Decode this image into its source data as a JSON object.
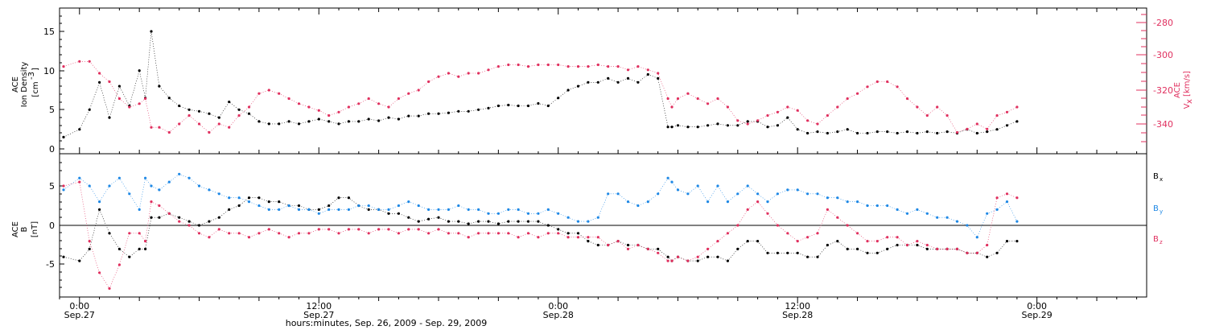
{
  "colors": {
    "black": "#000000",
    "pink": "#e0305f",
    "blue": "#1e88e5"
  },
  "xaxis": {
    "label": "hours:minutes, Sep. 26, 2009 - Sep. 29, 2009",
    "ticks": [
      {
        "t": 0,
        "time": "0:00",
        "date": "Sep.27"
      },
      {
        "t": 12,
        "time": "12:00",
        "date": "Sep.27"
      },
      {
        "t": 24,
        "time": "0:00",
        "date": "Sep.28"
      },
      {
        "t": 36,
        "time": "12:00",
        "date": "Sep.28"
      },
      {
        "t": 48,
        "time": "0:00",
        "date": "Sep.29"
      }
    ],
    "range_hours": [
      -1.0,
      53.5
    ]
  },
  "panel1": {
    "left_label": [
      "ACE",
      "Ion Density",
      "[cm",
      "-3",
      "]"
    ],
    "right_label": [
      "ACE",
      "V",
      "x",
      "[km/s]"
    ],
    "left_ticks": [
      "0",
      "5",
      "10",
      "15"
    ],
    "right_ticks": [
      "-280",
      "-300",
      "-320",
      "-340"
    ]
  },
  "panel2": {
    "left_label": [
      "ACE",
      "B",
      "[nT]"
    ],
    "left_ticks": [
      "-5",
      "0",
      "5"
    ],
    "legend": [
      {
        "base": "B",
        "sub": "x",
        "color": "#000000"
      },
      {
        "base": "B",
        "sub": "y",
        "color": "#1e88e5"
      },
      {
        "base": "B",
        "sub": "z",
        "color": "#e0305f"
      }
    ]
  },
  "chart_data": [
    {
      "type": "scatter",
      "x_unit": "hours since Sep.27 0:00",
      "ylim_left": [
        -0.5,
        17.5
      ],
      "ylim_right": [
        -356,
        -268
      ],
      "series": [
        {
          "name": "Ion Density",
          "axis": "left",
          "color": "#000000",
          "x": [
            -0.8,
            0,
            0.5,
            1,
            1.5,
            2,
            2.5,
            3,
            3.3,
            3.6,
            4,
            4.5,
            5,
            5.5,
            6,
            6.5,
            7,
            7.5,
            8,
            8.5,
            9,
            9.5,
            10,
            10.5,
            11,
            11.5,
            12,
            12.5,
            13,
            13.5,
            14,
            14.5,
            15,
            15.5,
            16,
            16.5,
            17,
            17.5,
            18,
            18.5,
            19,
            19.5,
            20,
            20.5,
            21,
            21.5,
            22,
            22.5,
            23,
            23.5,
            24,
            24.5,
            25,
            25.5,
            26,
            26.5,
            27,
            27.5,
            28,
            28.5,
            29,
            29.5,
            29.7,
            30,
            30.5,
            31,
            31.5,
            32,
            32.5,
            33,
            33.5,
            34,
            34.5,
            35,
            35.5,
            36,
            36.5,
            37,
            37.5,
            38,
            38.5,
            39,
            39.5,
            40,
            40.5,
            41,
            41.5,
            42,
            42.5,
            43,
            43.5,
            44,
            44.5,
            45,
            45.5,
            46,
            46.5,
            47
          ],
          "y": [
            1.5,
            2.5,
            5,
            8.5,
            4,
            8,
            5.5,
            10,
            6.5,
            15,
            8,
            6.5,
            5.5,
            5,
            4.8,
            4.5,
            4,
            6,
            5,
            4.5,
            3.5,
            3.2,
            3.2,
            3.5,
            3.2,
            3.5,
            3.8,
            3.5,
            3.2,
            3.5,
            3.5,
            3.8,
            3.6,
            4,
            3.8,
            4.2,
            4.2,
            4.5,
            4.5,
            4.6,
            4.8,
            4.8,
            5,
            5.2,
            5.5,
            5.6,
            5.5,
            5.5,
            5.8,
            5.5,
            6.5,
            7.5,
            8,
            8.5,
            8.5,
            9,
            8.5,
            9,
            8.5,
            9.5,
            9,
            2.8,
            2.8,
            3,
            2.8,
            2.8,
            3,
            3.2,
            3,
            3,
            3.5,
            3.5,
            2.8,
            3,
            4,
            2.5,
            2,
            2.2,
            2,
            2.2,
            2.5,
            2,
            2,
            2.2,
            2.2,
            2,
            2.2,
            2,
            2.2,
            2,
            2.2,
            2,
            2.5,
            2,
            2.2,
            2.5,
            3,
            3.5
          ]
        },
        {
          "name": "Vx",
          "axis": "right",
          "color": "#e0305f",
          "x": [
            -0.8,
            0,
            0.5,
            1,
            1.5,
            2,
            2.5,
            3,
            3.3,
            3.6,
            4,
            4.5,
            5,
            5.5,
            6,
            6.5,
            7,
            7.5,
            8,
            8.5,
            9,
            9.5,
            10,
            10.5,
            11,
            11.5,
            12,
            12.5,
            13,
            13.5,
            14,
            14.5,
            15,
            15.5,
            16,
            16.5,
            17,
            17.5,
            18,
            18.5,
            19,
            19.5,
            20,
            20.5,
            21,
            21.5,
            22,
            22.5,
            23,
            23.5,
            24,
            24.5,
            25,
            25.5,
            26,
            26.5,
            27,
            27.5,
            28,
            28.5,
            29,
            29.5,
            29.7,
            30,
            30.5,
            31,
            31.5,
            32,
            32.5,
            33,
            33.5,
            34,
            34.5,
            35,
            35.5,
            36,
            36.5,
            37,
            37.5,
            38,
            38.5,
            39,
            39.5,
            40,
            40.5,
            41,
            41.5,
            42,
            42.5,
            43,
            43.5,
            44,
            44.5,
            45,
            45.5,
            46,
            46.5,
            47
          ],
          "y": [
            -306,
            -303,
            -303,
            -310,
            -315,
            -325,
            -330,
            -328,
            -325,
            -342,
            -342,
            -345,
            -340,
            -335,
            -340,
            -345,
            -340,
            -342,
            -335,
            -330,
            -322,
            -320,
            -322,
            -325,
            -328,
            -330,
            -332,
            -335,
            -333,
            -330,
            -328,
            -325,
            -328,
            -330,
            -325,
            -322,
            -320,
            -315,
            -312,
            -310,
            -312,
            -310,
            -310,
            -308,
            -306,
            -305,
            -305,
            -306,
            -305,
            -305,
            -305,
            -306,
            -306,
            -306,
            -305,
            -306,
            -306,
            -308,
            -306,
            -308,
            -310,
            -325,
            -330,
            -325,
            -322,
            -325,
            -328,
            -325,
            -330,
            -338,
            -340,
            -338,
            -335,
            -333,
            -330,
            -332,
            -338,
            -340,
            -335,
            -330,
            -325,
            -322,
            -318,
            -315,
            -315,
            -318,
            -325,
            -330,
            -335,
            -330,
            -335,
            -345,
            -343,
            -340,
            -343,
            -335,
            -333,
            -330
          ]
        }
      ]
    },
    {
      "type": "scatter",
      "x_unit": "hours since Sep.27 0:00",
      "ylim": [
        -9,
        9
      ],
      "series": [
        {
          "name": "Bx",
          "color": "#000000",
          "x": [
            -0.8,
            0,
            0.5,
            1,
            1.5,
            2,
            2.5,
            3,
            3.3,
            3.6,
            4,
            4.5,
            5,
            5.5,
            6,
            6.5,
            7,
            7.5,
            8,
            8.5,
            9,
            9.5,
            10,
            10.5,
            11,
            11.5,
            12,
            12.5,
            13,
            13.5,
            14,
            14.5,
            15,
            15.5,
            16,
            16.5,
            17,
            17.5,
            18,
            18.5,
            19,
            19.5,
            20,
            20.5,
            21,
            21.5,
            22,
            22.5,
            23,
            23.5,
            24,
            24.5,
            25,
            25.5,
            26,
            26.5,
            27,
            27.5,
            28,
            28.5,
            29,
            29.5,
            29.7,
            30,
            30.5,
            31,
            31.5,
            32,
            32.5,
            33,
            33.5,
            34,
            34.5,
            35,
            35.5,
            36,
            36.5,
            37,
            37.5,
            38,
            38.5,
            39,
            39.5,
            40,
            40.5,
            41,
            41.5,
            42,
            42.5,
            43,
            43.5,
            44,
            44.5,
            45,
            45.5,
            46,
            46.5,
            47
          ],
          "y": [
            -4,
            -4.5,
            -3,
            2,
            -1,
            -3,
            -4,
            -3,
            -3,
            1,
            1,
            1.5,
            1,
            0.5,
            0,
            0.5,
            1,
            2,
            2.5,
            3.5,
            3.5,
            3,
            3,
            2.5,
            2.5,
            2,
            2,
            2.5,
            3.5,
            3.5,
            2.5,
            2,
            2,
            1.5,
            1.5,
            1,
            0.5,
            0.8,
            1,
            0.5,
            0.5,
            0.2,
            0.5,
            0.5,
            0.2,
            0.5,
            0.5,
            0.5,
            0.5,
            0,
            -0.5,
            -1,
            -1,
            -2,
            -2.5,
            -2.5,
            -2,
            -2.5,
            -2.5,
            -3,
            -3,
            -4,
            -4.5,
            -4,
            -4.5,
            -4.5,
            -4,
            -4,
            -4.5,
            -3,
            -2,
            -2,
            -3.5,
            -3.5,
            -3.5,
            -3.5,
            -4,
            -4,
            -2.5,
            -2,
            -3,
            -3,
            -3.5,
            -3.5,
            -3,
            -2.5,
            -2.5,
            -2.5,
            -3,
            -3,
            -3,
            -3,
            -3.5,
            -3.5,
            -4,
            -3.5,
            -2,
            -2
          ]
        },
        {
          "name": "By",
          "color": "#1e88e5",
          "x": [
            -0.8,
            0,
            0.5,
            1,
            1.5,
            2,
            2.5,
            3,
            3.3,
            3.6,
            4,
            4.5,
            5,
            5.5,
            6,
            6.5,
            7,
            7.5,
            8,
            8.5,
            9,
            9.5,
            10,
            10.5,
            11,
            11.5,
            12,
            12.5,
            13,
            13.5,
            14,
            14.5,
            15,
            15.5,
            16,
            16.5,
            17,
            17.5,
            18,
            18.5,
            19,
            19.5,
            20,
            20.5,
            21,
            21.5,
            22,
            22.5,
            23,
            23.5,
            24,
            24.5,
            25,
            25.5,
            26,
            26.5,
            27,
            27.5,
            28,
            28.5,
            29,
            29.5,
            29.7,
            30,
            30.5,
            31,
            31.5,
            32,
            32.5,
            33,
            33.5,
            34,
            34.5,
            35,
            35.5,
            36,
            36.5,
            37,
            37.5,
            38,
            38.5,
            39,
            39.5,
            40,
            40.5,
            41,
            41.5,
            42,
            42.5,
            43,
            43.5,
            44,
            44.5,
            45,
            45.5,
            46,
            46.5,
            47
          ],
          "y": [
            4.5,
            6,
            5,
            3,
            5,
            6,
            4,
            2,
            6,
            5,
            4.5,
            5.5,
            6.5,
            6,
            5,
            4.5,
            4,
            3.5,
            3.5,
            3,
            2.5,
            2,
            2,
            2.5,
            2,
            2,
            1.5,
            2,
            2,
            2,
            2.5,
            2.5,
            2,
            2,
            2.5,
            3,
            2.5,
            2,
            2,
            2,
            2.5,
            2,
            2,
            1.5,
            1.5,
            2,
            2,
            1.5,
            1.5,
            2,
            1.5,
            1,
            0.5,
            0.5,
            1,
            4,
            4,
            3,
            2.5,
            3,
            4,
            6,
            5.5,
            4.5,
            4,
            5,
            3,
            5,
            3,
            4,
            5,
            4,
            3,
            4,
            4.5,
            4.5,
            4,
            4,
            3.5,
            3.5,
            3,
            3,
            2.5,
            2.5,
            2.5,
            2,
            1.5,
            2,
            1.5,
            1,
            1,
            0.5,
            0,
            -1.5,
            1.5,
            2,
            3,
            0.5
          ]
        },
        {
          "name": "Bz",
          "color": "#e0305f",
          "x": [
            -0.8,
            0,
            0.5,
            1,
            1.5,
            2,
            2.5,
            3,
            3.3,
            3.6,
            4,
            4.5,
            5,
            5.5,
            6,
            6.5,
            7,
            7.5,
            8,
            8.5,
            9,
            9.5,
            10,
            10.5,
            11,
            11.5,
            12,
            12.5,
            13,
            13.5,
            14,
            14.5,
            15,
            15.5,
            16,
            16.5,
            17,
            17.5,
            18,
            18.5,
            19,
            19.5,
            20,
            20.5,
            21,
            21.5,
            22,
            22.5,
            23,
            23.5,
            24,
            24.5,
            25,
            25.5,
            26,
            26.5,
            27,
            27.5,
            28,
            28.5,
            29,
            29.5,
            29.7,
            30,
            30.5,
            31,
            31.5,
            32,
            32.5,
            33,
            33.5,
            34,
            34.5,
            35,
            35.5,
            36,
            36.5,
            37,
            37.5,
            38,
            38.5,
            39,
            39.5,
            40,
            40.5,
            41,
            41.5,
            42,
            42.5,
            43,
            43.5,
            44,
            44.5,
            45,
            45.5,
            46,
            46.5,
            47
          ],
          "y": [
            5,
            5.5,
            -2,
            -6,
            -8,
            -5,
            -1,
            -1,
            -2,
            3,
            2.5,
            1.5,
            0.5,
            0,
            -1,
            -1.5,
            -0.5,
            -1,
            -1,
            -1.5,
            -1,
            -0.5,
            -1,
            -1.5,
            -1,
            -1,
            -0.5,
            -0.5,
            -1,
            -0.5,
            -0.5,
            -1,
            -0.5,
            -0.5,
            -1,
            -0.5,
            -0.5,
            -1,
            -0.5,
            -1,
            -1,
            -1.5,
            -1,
            -1,
            -1,
            -1,
            -1.5,
            -1,
            -1.5,
            -1,
            -1,
            -1.5,
            -1.5,
            -1.5,
            -1.5,
            -2.5,
            -2,
            -3,
            -2.5,
            -3,
            -3.5,
            -4.5,
            -4.5,
            -4,
            -4.5,
            -4,
            -3,
            -2,
            -1,
            0,
            2,
            3,
            1.5,
            0,
            -1,
            -2,
            -1.5,
            -1,
            2,
            1,
            0,
            -1,
            -2,
            -2,
            -1.5,
            -1.5,
            -2.5,
            -2,
            -2.5,
            -3,
            -3,
            -3,
            -3.5,
            -3.5,
            -2.5,
            3.5,
            4,
            3.5
          ]
        }
      ]
    }
  ]
}
